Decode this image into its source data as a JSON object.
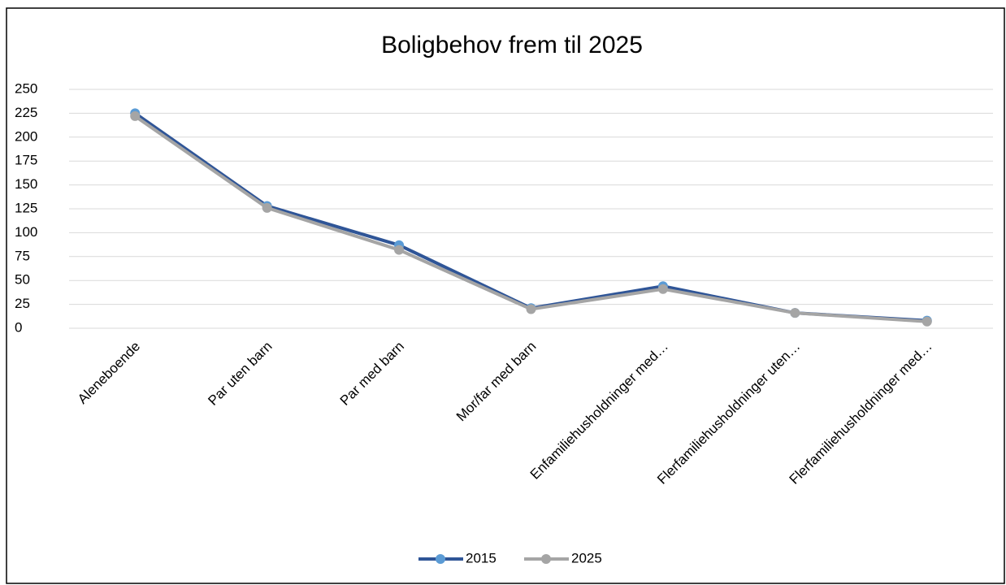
{
  "chart_data": {
    "type": "line",
    "title": "Boligbehov frem til 2025",
    "categories": [
      "Aleneboende",
      "Par uten barn",
      "Par med barn",
      "Mor/far med barn",
      "Enfamiliehusholdninger med…",
      "Flerfamiliehusholdninger uten…",
      "Flerfamiliehusholdninger med…"
    ],
    "series": [
      {
        "name": "2015",
        "color": "#2f5597",
        "marker_color": "#5b9bd5",
        "values": [
          225,
          128,
          87,
          21,
          44,
          16,
          8
        ]
      },
      {
        "name": "2025",
        "color": "#a5a5a5",
        "marker_color": "#a5a5a5",
        "values": [
          222,
          126,
          82,
          20,
          41,
          16,
          7
        ]
      }
    ],
    "ylim": [
      0,
      250
    ],
    "yticks": [
      0,
      25,
      50,
      75,
      100,
      125,
      150,
      175,
      200,
      225,
      250
    ],
    "grid": true,
    "legend": "bottom"
  }
}
